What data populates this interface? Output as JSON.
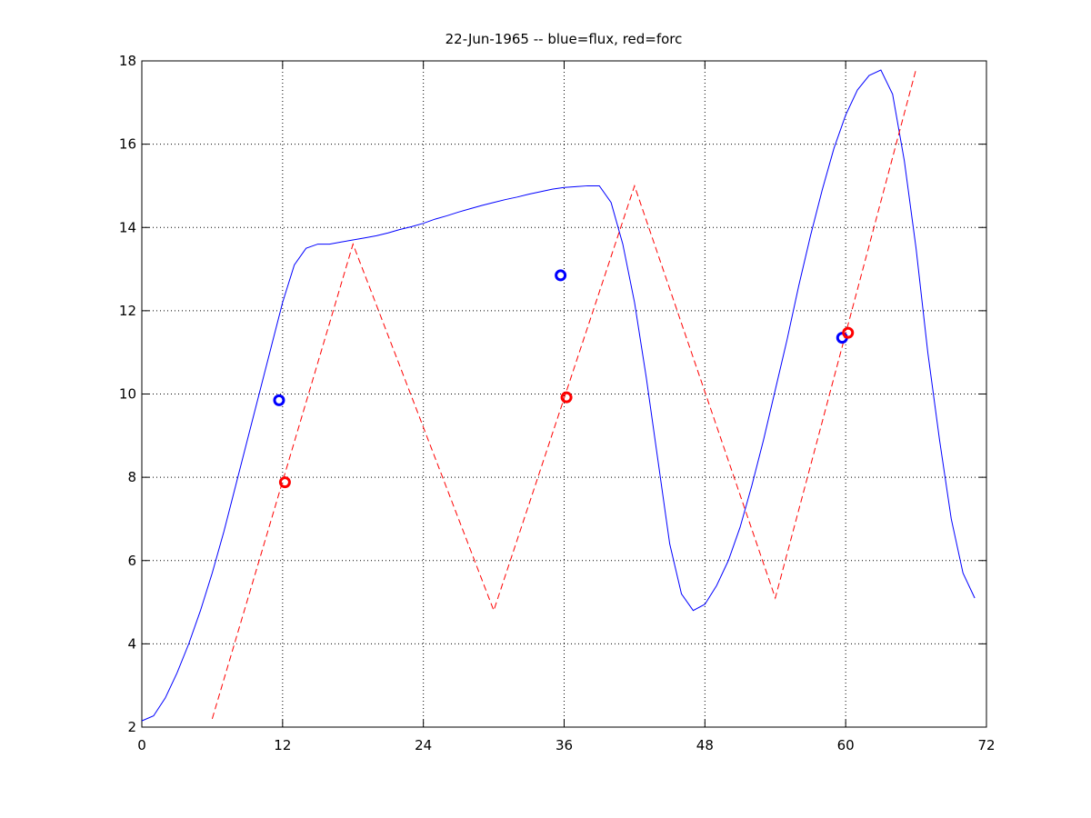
{
  "chart_data": {
    "type": "line",
    "title": "22-Jun-1965 -- blue=flux, red=forc",
    "xlim": [
      0,
      72
    ],
    "xticks": [
      0,
      12,
      24,
      36,
      48,
      60,
      72
    ],
    "ylim": [
      2,
      18
    ],
    "yticks": [
      2,
      4,
      6,
      8,
      10,
      12,
      14,
      16,
      18
    ],
    "grid": true,
    "series": [
      {
        "color": "#0000ff",
        "style": "solid",
        "x": [
          0,
          1,
          2,
          3,
          4,
          5,
          6,
          7,
          8,
          9,
          10,
          11,
          12,
          13,
          14,
          15,
          16,
          17,
          18,
          19,
          20,
          21,
          22,
          23,
          24,
          25,
          26,
          27,
          28,
          29,
          30,
          31,
          32,
          33,
          34,
          35,
          36,
          37,
          38,
          39,
          40,
          41,
          42,
          43,
          44,
          45,
          46,
          47,
          48,
          49,
          50,
          51,
          52,
          53,
          54,
          55,
          56,
          57,
          58,
          59,
          60,
          61,
          62,
          63,
          64,
          65,
          66,
          67,
          68,
          69,
          70,
          71
        ],
        "values": [
          2.15,
          2.27,
          2.7,
          3.3,
          4.0,
          4.8,
          5.7,
          6.7,
          7.8,
          8.9,
          10.0,
          11.1,
          12.2,
          13.1,
          13.5,
          13.6,
          13.6,
          13.65,
          13.7,
          13.75,
          13.8,
          13.87,
          13.95,
          14.02,
          14.1,
          14.2,
          14.28,
          14.37,
          14.45,
          14.53,
          14.6,
          14.67,
          14.73,
          14.8,
          14.86,
          14.92,
          14.96,
          14.98,
          15.0,
          15.0,
          14.6,
          13.6,
          12.2,
          10.4,
          8.4,
          6.4,
          5.2,
          4.8,
          4.95,
          5.4,
          6.0,
          6.8,
          7.8,
          8.9,
          10.1,
          11.3,
          12.6,
          13.8,
          14.9,
          15.9,
          16.7,
          17.3,
          17.65,
          17.78,
          17.2,
          15.6,
          13.5,
          11.0,
          8.9,
          7.0,
          5.7,
          5.1
        ]
      },
      {
        "color": "#ff0000",
        "style": "dashed",
        "x": [
          6,
          18,
          30,
          42,
          54,
          66
        ],
        "values": [
          2.2,
          13.6,
          4.8,
          15.0,
          5.1,
          17.8
        ]
      }
    ],
    "markers": [
      {
        "color": "#0000ff",
        "x": [
          11.7,
          35.7,
          59.7
        ],
        "values": [
          9.85,
          12.85,
          11.35
        ]
      },
      {
        "color": "#ff0000",
        "x": [
          12.2,
          36.2,
          60.2
        ],
        "values": [
          7.88,
          9.92,
          11.47
        ]
      }
    ]
  }
}
